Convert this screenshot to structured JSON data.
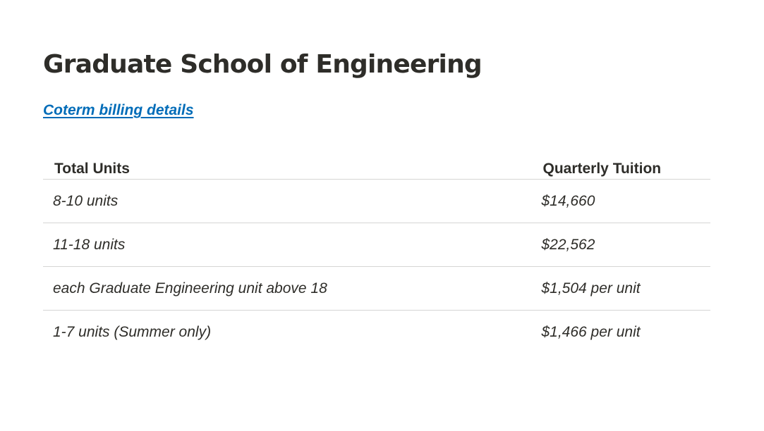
{
  "page": {
    "title": "Graduate School of Engineering",
    "link_label": "Coterm billing details"
  },
  "colors": {
    "text": "#2e2d29",
    "link": "#006cb8",
    "divider": "#d5d5d4"
  },
  "table": {
    "headers": [
      "Total Units",
      "Quarterly Tuition"
    ],
    "rows": [
      {
        "units": "8-10 units",
        "tuition": "$14,660"
      },
      {
        "units": "11-18 units",
        "tuition": "$22,562"
      },
      {
        "units": "each Graduate Engineering unit above 18",
        "tuition": "$1,504 per unit"
      },
      {
        "units": "1-7 units (Summer only)",
        "tuition": "$1,466 per unit"
      }
    ]
  }
}
